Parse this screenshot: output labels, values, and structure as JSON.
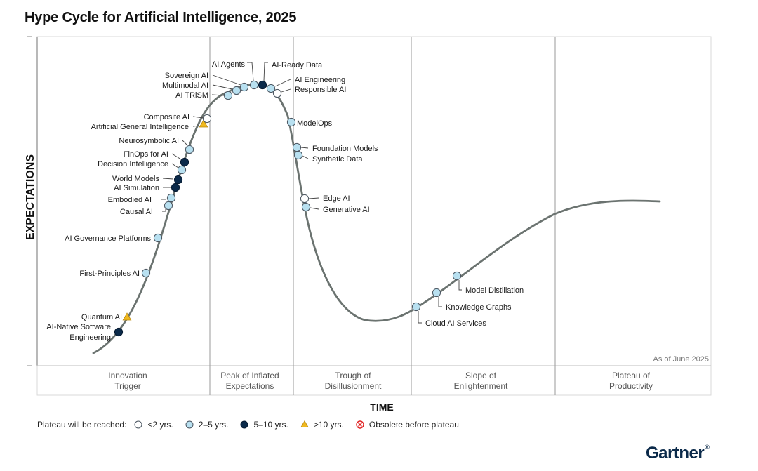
{
  "chart_data": {
    "type": "hype-cycle",
    "title": "Hype Cycle for Artificial Intelligence, 2025",
    "ylabel": "EXPECTATIONS",
    "xlabel": "TIME",
    "as_of": "As of June 2025",
    "phases": [
      [
        "Innovation",
        "Trigger"
      ],
      [
        "Peak of Inflated",
        "Expectations"
      ],
      [
        "Trough of",
        "Disillusionment"
      ],
      [
        "Slope of",
        "Enlightenment"
      ],
      [
        "Plateau of",
        "Productivity"
      ]
    ],
    "legend": {
      "title": "Plateau will be reached:",
      "items": [
        {
          "key": "lt2",
          "label": "<2 yrs."
        },
        {
          "key": "2to5",
          "label": "2–5 yrs."
        },
        {
          "key": "5to10",
          "label": "5–10 yrs."
        },
        {
          "key": "gt10",
          "label": ">10 yrs."
        },
        {
          "key": "obsolete",
          "label": "Obsolete before plateau"
        }
      ]
    },
    "colors": {
      "lt2": "#ffffff",
      "2to5": "#b8e0f0",
      "5to10": "#0b2a4a",
      "gt10": "#f0b91e",
      "obsolete": "#e02020",
      "curve": "#6b7370"
    },
    "technologies": [
      {
        "name": [
          "AI-Native Software",
          "Engineering"
        ],
        "phase": "Innovation Trigger",
        "plateau": "5to10"
      },
      {
        "name": [
          "Quantum AI"
        ],
        "phase": "Innovation Trigger",
        "plateau": "gt10"
      },
      {
        "name": [
          "First-Principles AI"
        ],
        "phase": "Innovation Trigger",
        "plateau": "2to5"
      },
      {
        "name": [
          "AI Governance Platforms"
        ],
        "phase": "Innovation Trigger",
        "plateau": "2to5"
      },
      {
        "name": [
          "Causal AI"
        ],
        "phase": "Innovation Trigger",
        "plateau": "2to5"
      },
      {
        "name": [
          "Embodied AI"
        ],
        "phase": "Innovation Trigger",
        "plateau": "2to5"
      },
      {
        "name": [
          "AI Simulation"
        ],
        "phase": "Innovation Trigger",
        "plateau": "5to10"
      },
      {
        "name": [
          "World Models"
        ],
        "phase": "Innovation Trigger",
        "plateau": "5to10"
      },
      {
        "name": [
          "Decision Intelligence"
        ],
        "phase": "Innovation Trigger",
        "plateau": "2to5"
      },
      {
        "name": [
          "FinOps for AI"
        ],
        "phase": "Innovation Trigger",
        "plateau": "5to10"
      },
      {
        "name": [
          "Neurosymbolic AI"
        ],
        "phase": "Innovation Trigger",
        "plateau": "2to5"
      },
      {
        "name": [
          "Artificial General Intelligence"
        ],
        "phase": "Innovation Trigger",
        "plateau": "gt10"
      },
      {
        "name": [
          "Composite AI"
        ],
        "phase": "Peak of Inflated Expectations",
        "plateau": "lt2"
      },
      {
        "name": [
          "AI TRiSM"
        ],
        "phase": "Peak of Inflated Expectations",
        "plateau": "2to5"
      },
      {
        "name": [
          "Multimodal AI"
        ],
        "phase": "Peak of Inflated Expectations",
        "plateau": "2to5"
      },
      {
        "name": [
          "Sovereign AI"
        ],
        "phase": "Peak of Inflated Expectations",
        "plateau": "2to5"
      },
      {
        "name": [
          "AI Agents"
        ],
        "phase": "Peak of Inflated Expectations",
        "plateau": "2to5"
      },
      {
        "name": [
          "AI-Ready Data"
        ],
        "phase": "Peak of Inflated Expectations",
        "plateau": "5to10"
      },
      {
        "name": [
          "AI Engineering"
        ],
        "phase": "Peak of Inflated Expectations",
        "plateau": "2to5"
      },
      {
        "name": [
          "Responsible AI"
        ],
        "phase": "Peak of Inflated Expectations",
        "plateau": "lt2"
      },
      {
        "name": [
          "ModelOps"
        ],
        "phase": "Trough of Disillusionment",
        "plateau": "2to5"
      },
      {
        "name": [
          "Foundation Models"
        ],
        "phase": "Trough of Disillusionment",
        "plateau": "2to5"
      },
      {
        "name": [
          "Synthetic Data"
        ],
        "phase": "Trough of Disillusionment",
        "plateau": "2to5"
      },
      {
        "name": [
          "Edge AI"
        ],
        "phase": "Trough of Disillusionment",
        "plateau": "lt2"
      },
      {
        "name": [
          "Generative AI"
        ],
        "phase": "Trough of Disillusionment",
        "plateau": "2to5"
      },
      {
        "name": [
          "Cloud AI Services"
        ],
        "phase": "Slope of Enlightenment",
        "plateau": "2to5"
      },
      {
        "name": [
          "Knowledge Graphs"
        ],
        "phase": "Slope of Enlightenment",
        "plateau": "2to5"
      },
      {
        "name": [
          "Model Distillation"
        ],
        "phase": "Slope of Enlightenment",
        "plateau": "2to5"
      }
    ]
  },
  "brand": "Gartner",
  "brand_mark": "®"
}
